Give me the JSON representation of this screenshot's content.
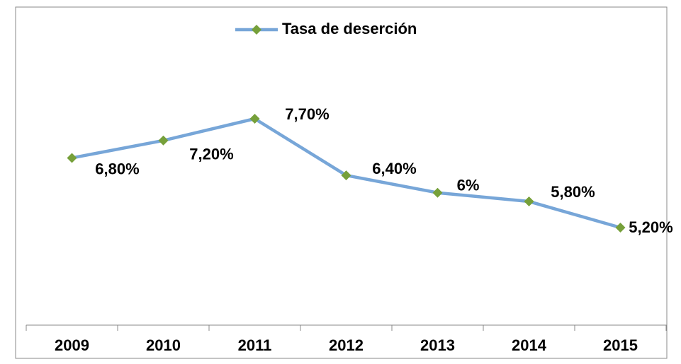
{
  "chart_data": {
    "type": "line",
    "categories": [
      "2009",
      "2010",
      "2011",
      "2012",
      "2013",
      "2014",
      "2015"
    ],
    "series": [
      {
        "name": "Tasa de deserción",
        "color": "#77a6d8",
        "marker_color": "#76a03a",
        "values": [
          6.8,
          7.2,
          7.7,
          6.4,
          6,
          5.8,
          5.2
        ],
        "value_labels": [
          "6,80%",
          "7,20%",
          "7,70%",
          "6,40%",
          "6%",
          "5,80%",
          "5,20%"
        ]
      }
    ],
    "legend": "top"
  }
}
